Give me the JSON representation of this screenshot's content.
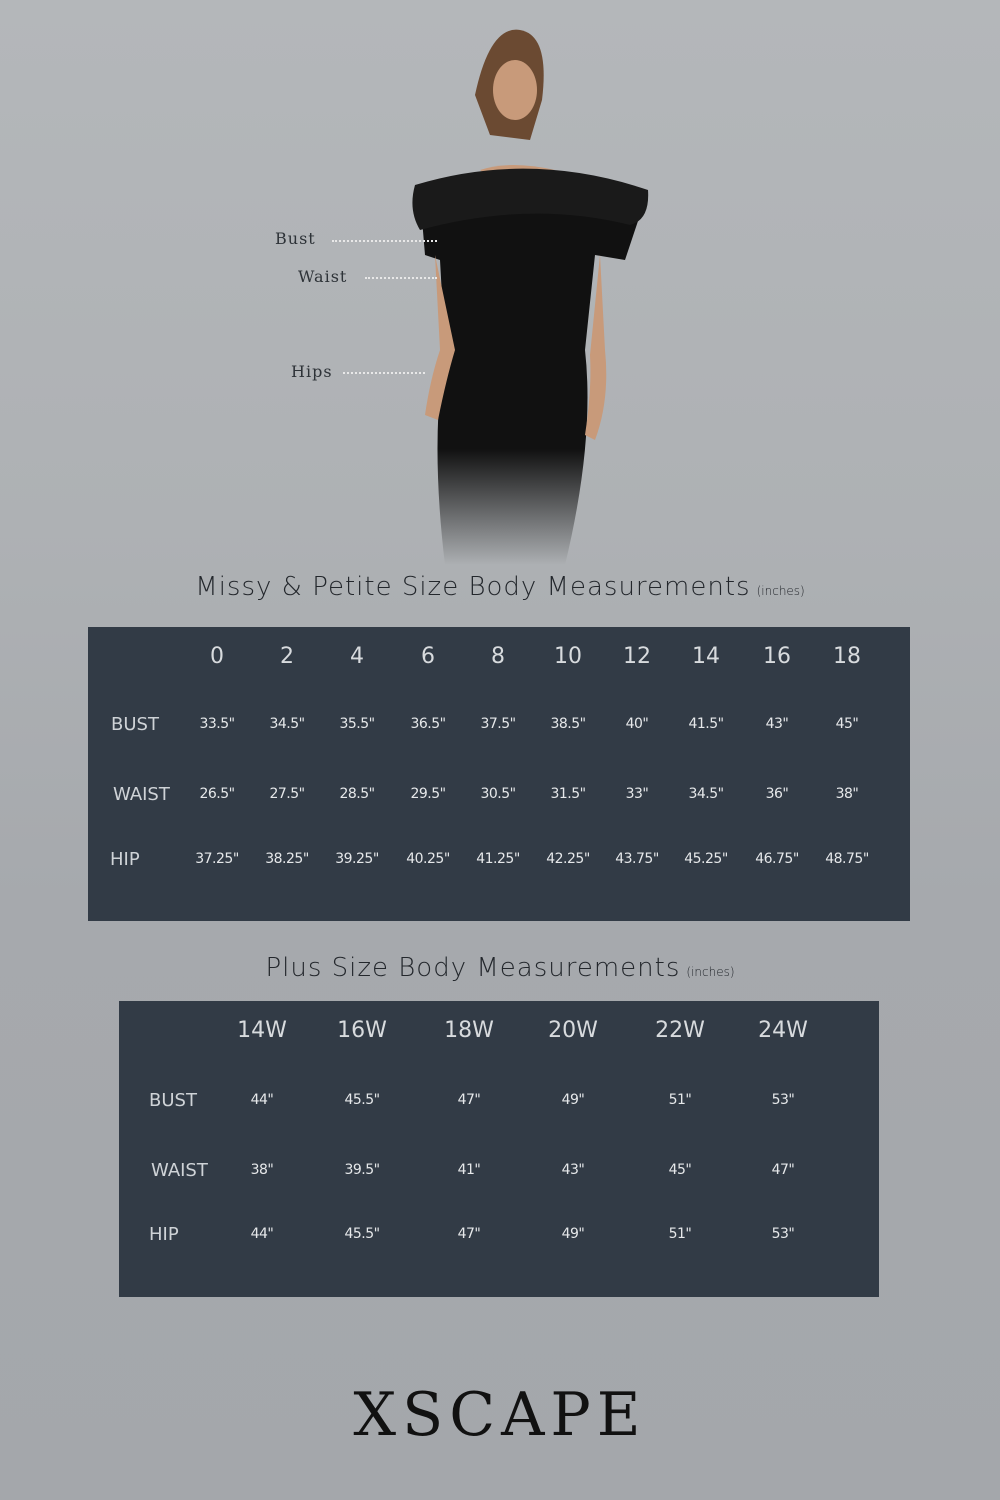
{
  "figure_labels": {
    "bust": "Bust",
    "waist": "Waist",
    "hips": "Hips"
  },
  "missy": {
    "title": "Missy & Petite Size Body Measurements",
    "unit": "(inches)",
    "sizes": [
      "0",
      "2",
      "4",
      "6",
      "8",
      "10",
      "12",
      "14",
      "16",
      "18"
    ],
    "rows": [
      {
        "label": "BUST",
        "values": [
          "33.5\"",
          "34.5\"",
          "35.5\"",
          "36.5\"",
          "37.5\"",
          "38.5\"",
          "40\"",
          "41.5\"",
          "43\"",
          "45\""
        ]
      },
      {
        "label": "WAIST",
        "values": [
          "26.5\"",
          "27.5\"",
          "28.5\"",
          "29.5\"",
          "30.5\"",
          "31.5\"",
          "33\"",
          "34.5\"",
          "36\"",
          "38\""
        ]
      },
      {
        "label": "HIP",
        "values": [
          "37.25\"",
          "38.25\"",
          "39.25\"",
          "40.25\"",
          "41.25\"",
          "42.25\"",
          "43.75\"",
          "45.25\"",
          "46.75\"",
          "48.75\""
        ]
      }
    ]
  },
  "plus": {
    "title": "Plus Size Body Measurements",
    "unit": "(inches)",
    "sizes": [
      "14W",
      "16W",
      "18W",
      "20W",
      "22W",
      "24W"
    ],
    "rows": [
      {
        "label": "BUST",
        "values": [
          "44\"",
          "45.5\"",
          "47\"",
          "49\"",
          "51\"",
          "53\""
        ]
      },
      {
        "label": "WAIST",
        "values": [
          "38\"",
          "39.5\"",
          "41\"",
          "43\"",
          "45\"",
          "47\""
        ]
      },
      {
        "label": "HIP",
        "values": [
          "44\"",
          "45.5\"",
          "47\"",
          "49\"",
          "51\"",
          "53\""
        ]
      }
    ]
  },
  "brand": "XSCAPE",
  "colors": {
    "table_bg": "#323b46",
    "background": "#b0b3b6",
    "dress": "#111111"
  }
}
